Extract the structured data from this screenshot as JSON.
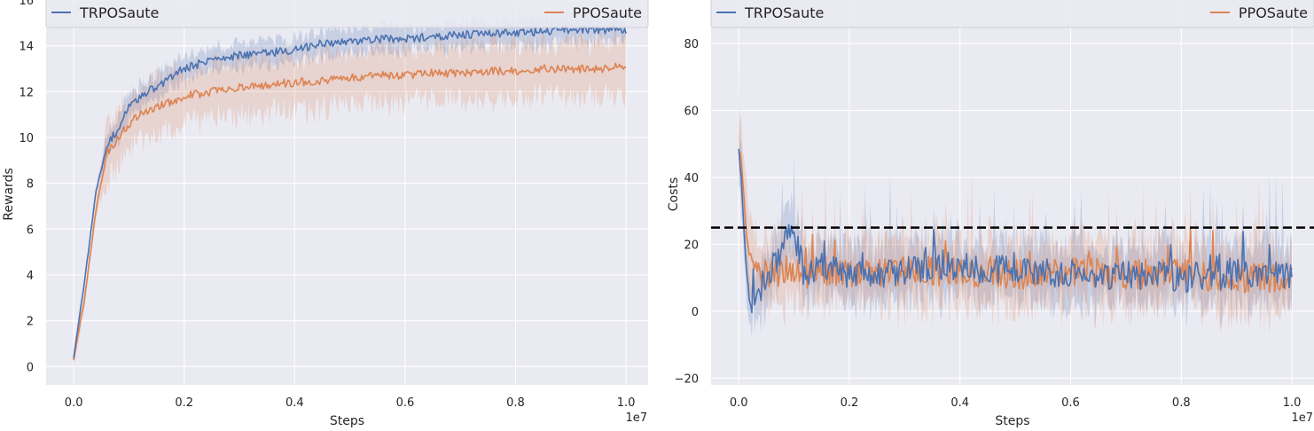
{
  "chart_data": [
    {
      "type": "line",
      "xlabel": "Steps",
      "ylabel": "Rewards",
      "x_offset_label": "1e7",
      "xlim": [
        -0.05,
        1.04
      ],
      "ylim": [
        -0.8,
        16
      ],
      "xticks": [
        0.0,
        0.2,
        0.4,
        0.6,
        0.8,
        1.0
      ],
      "xtick_labels": [
        "0.0",
        "0.2",
        "0.4",
        "0.6",
        "0.8",
        "1.0"
      ],
      "yticks": [
        0,
        2,
        4,
        6,
        8,
        10,
        12,
        14,
        16
      ],
      "ytick_labels": [
        "0",
        "2",
        "4",
        "6",
        "8",
        "10",
        "12",
        "14",
        "16"
      ],
      "grid": true,
      "legend_placement": "top, spanning",
      "series": [
        {
          "name": "TRPOSaute",
          "color": "#4c72b0",
          "x": [
            0.0,
            0.02,
            0.04,
            0.06,
            0.08,
            0.1,
            0.12,
            0.15,
            0.2,
            0.25,
            0.3,
            0.35,
            0.4,
            0.45,
            0.5,
            0.55,
            0.6,
            0.65,
            0.7,
            0.75,
            0.8,
            0.85,
            0.9,
            0.95,
            1.0
          ],
          "y": [
            0.4,
            3.8,
            7.6,
            9.6,
            10.4,
            11.3,
            11.8,
            12.2,
            13.0,
            13.4,
            13.6,
            13.7,
            13.8,
            14.1,
            14.2,
            14.3,
            14.3,
            14.4,
            14.5,
            14.5,
            14.6,
            14.6,
            14.7,
            14.7,
            14.7
          ],
          "band_halfwidth": 0.6
        },
        {
          "name": "PPOSaute",
          "color": "#dd8452",
          "x": [
            0.0,
            0.02,
            0.04,
            0.06,
            0.08,
            0.1,
            0.12,
            0.15,
            0.2,
            0.25,
            0.3,
            0.35,
            0.4,
            0.45,
            0.5,
            0.55,
            0.6,
            0.65,
            0.7,
            0.75,
            0.8,
            0.85,
            0.9,
            0.95,
            1.0
          ],
          "y": [
            0.3,
            3.0,
            6.8,
            9.3,
            10.0,
            10.6,
            11.0,
            11.3,
            11.8,
            12.0,
            12.2,
            12.3,
            12.4,
            12.5,
            12.6,
            12.7,
            12.7,
            12.8,
            12.8,
            12.9,
            12.9,
            13.0,
            13.0,
            13.0,
            13.1
          ],
          "band_halfwidth": 1.3
        }
      ]
    },
    {
      "type": "line",
      "xlabel": "Steps",
      "ylabel": "Costs",
      "x_offset_label": "1e7",
      "xlim": [
        -0.05,
        1.04
      ],
      "ylim": [
        -22,
        93
      ],
      "xticks": [
        0.0,
        0.2,
        0.4,
        0.6,
        0.8,
        1.0
      ],
      "xtick_labels": [
        "0.0",
        "0.2",
        "0.4",
        "0.6",
        "0.8",
        "1.0"
      ],
      "yticks": [
        -20,
        0,
        20,
        40,
        60,
        80
      ],
      "ytick_labels": [
        "−20",
        "0",
        "20",
        "40",
        "60",
        "80"
      ],
      "threshold": 25,
      "grid": true,
      "legend_placement": "top, spanning",
      "series": [
        {
          "name": "TRPOSaute",
          "color": "#4c72b0",
          "x": [
            0.0,
            0.005,
            0.01,
            0.015,
            0.02,
            0.03,
            0.05,
            0.08,
            0.1,
            0.12,
            0.15,
            0.2,
            0.3,
            0.4,
            0.5,
            0.6,
            0.7,
            0.8,
            0.9,
            1.0
          ],
          "y": [
            49,
            38,
            24,
            10,
            3,
            5,
            9,
            20,
            23,
            10,
            14,
            10,
            12,
            13,
            12,
            11,
            11,
            10,
            11,
            10
          ],
          "band_halfwidth": 9
        },
        {
          "name": "PPOSaute",
          "color": "#dd8452",
          "x": [
            0.0,
            0.005,
            0.01,
            0.015,
            0.02,
            0.03,
            0.05,
            0.08,
            0.1,
            0.12,
            0.15,
            0.2,
            0.3,
            0.4,
            0.5,
            0.6,
            0.7,
            0.8,
            0.9,
            1.0
          ],
          "y": [
            48,
            44,
            32,
            22,
            14,
            12,
            11,
            12,
            13,
            11,
            12,
            11,
            12,
            12,
            11,
            12,
            11,
            11,
            10,
            10
          ],
          "band_halfwidth": 10
        }
      ]
    }
  ]
}
